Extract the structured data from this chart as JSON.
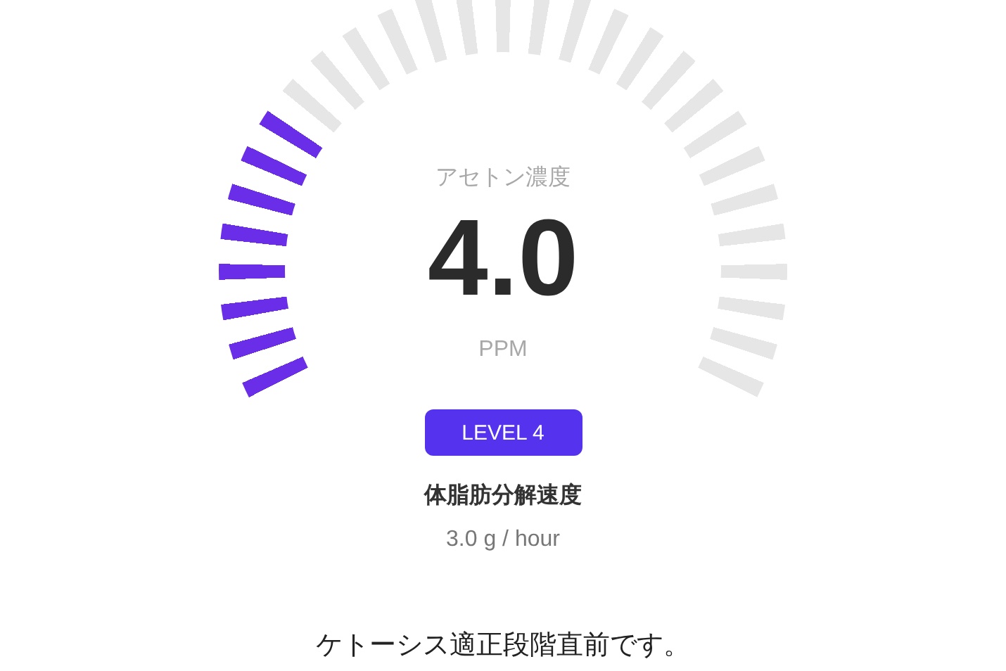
{
  "chart_data": {
    "type": "donut",
    "categories": [
      null,
      null
    ],
    "values": [
      27.6,
      72.4
    ],
    "colors": [
      "#6a2ee8",
      "#e6e6e6"
    ],
    "annotations": [
      "アセトン濃度",
      "4.0",
      "PPM",
      "LEVEL 4",
      "体脂肪分解速度",
      "3.0 g / hour",
      "ケトーシス適正段階直前です。"
    ]
  }
}
